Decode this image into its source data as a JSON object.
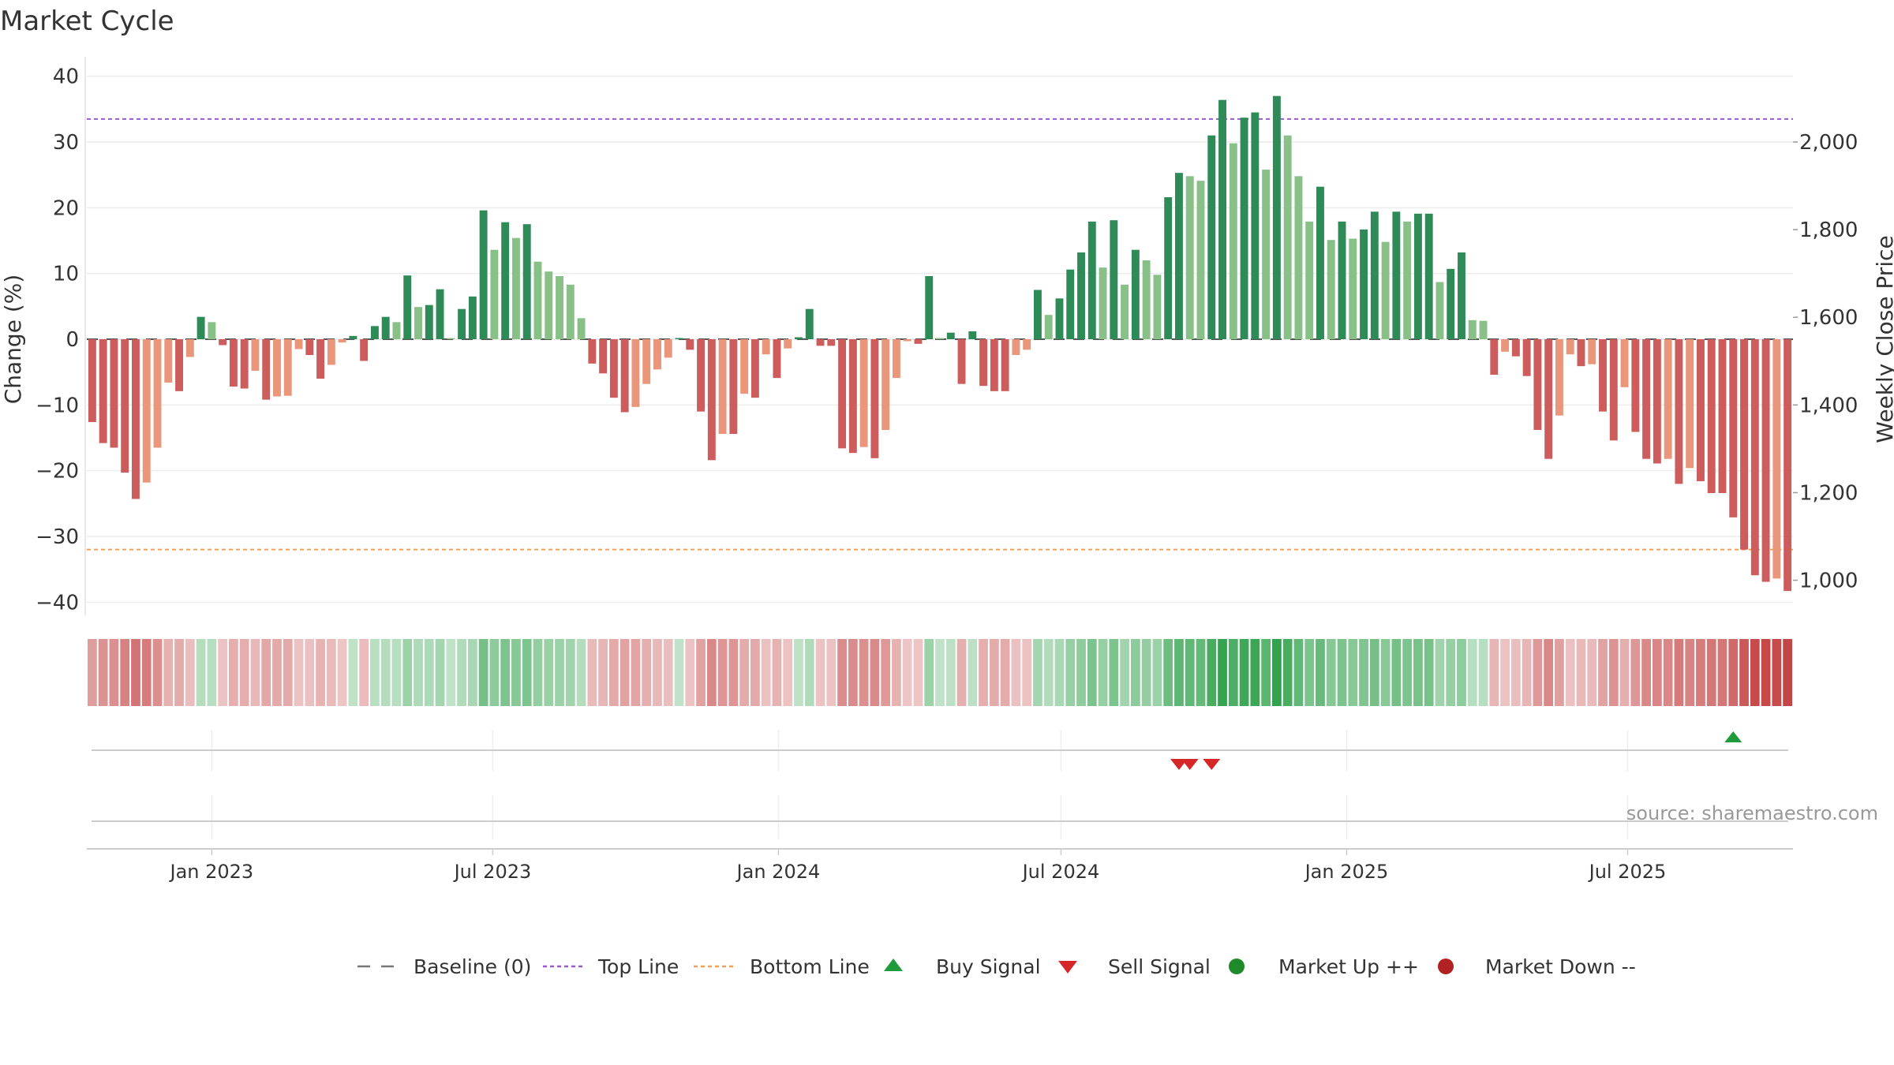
{
  "chart_data": {
    "type": "bar",
    "title": "Market Cycle",
    "ylabel": "Change (%)",
    "y2label": "Weekly Close Price",
    "ylim": [
      -42,
      42
    ],
    "yticks": [
      40,
      30,
      20,
      10,
      0,
      -10,
      -20,
      -30,
      -40
    ],
    "ytick_labels": [
      "40",
      "30",
      "20",
      "10",
      "0",
      "−10",
      "−20",
      "−30",
      "−40"
    ],
    "y2lim": [
      920,
      2180
    ],
    "y2ticks": [
      2000,
      1800,
      1600,
      1400,
      1200,
      1000
    ],
    "y2tick_labels": [
      "2,000",
      "1,800",
      "1,600",
      "1,400",
      "1,200",
      "1,000"
    ],
    "week_start": "2022-10-16",
    "xticks": [
      {
        "label": "Jan 2023",
        "date": "2023-01-01"
      },
      {
        "label": "Jul 2023",
        "date": "2023-07-01"
      },
      {
        "label": "Jan 2024",
        "date": "2024-01-01"
      },
      {
        "label": "Jul 2024",
        "date": "2024-07-01"
      },
      {
        "label": "Jan 2025",
        "date": "2025-01-01"
      },
      {
        "label": "Jul 2025",
        "date": "2025-07-01"
      }
    ],
    "values": [
      -12.6,
      -15.8,
      -16.5,
      -20.3,
      -24.3,
      -21.8,
      -16.5,
      -6.6,
      -7.9,
      -2.7,
      3.4,
      2.6,
      -0.9,
      -7.2,
      -7.5,
      -4.8,
      -9.2,
      -8.7,
      -8.6,
      -1.5,
      -2.4,
      -6.0,
      -3.9,
      -0.5,
      0.5,
      -3.3,
      2.0,
      3.4,
      2.6,
      9.7,
      4.9,
      5.2,
      7.6,
      0,
      4.6,
      6.5,
      19.6,
      13.6,
      17.8,
      15.4,
      17.5,
      11.8,
      10.3,
      9.6,
      8.3,
      3.2,
      -3.7,
      -5.2,
      -8.9,
      -11.1,
      -10.3,
      -6.8,
      -4.6,
      -2.8,
      0,
      -1.6,
      -11.0,
      -18.4,
      -14.4,
      -14.4,
      -8.3,
      -8.9,
      -2.3,
      -5.9,
      -1.4,
      0.3,
      4.6,
      -1.0,
      -1.0,
      -16.6,
      -17.3,
      -16.4,
      -18.1,
      -13.8,
      -5.9,
      -0.3,
      -0.7,
      9.6,
      0,
      1.0,
      -6.8,
      1.2,
      -7.1,
      -7.9,
      -7.9,
      -2.4,
      -1.6,
      7.5,
      3.7,
      6.2,
      10.6,
      13.2,
      17.9,
      10.9,
      18.1,
      8.3,
      13.6,
      12.0,
      9.8,
      21.6,
      25.3,
      24.8,
      24.1,
      31.0,
      36.4,
      29.8,
      33.7,
      34.5,
      25.8,
      37.0,
      31.0,
      24.8,
      17.9,
      23.2,
      15.1,
      17.9,
      15.3,
      16.7,
      19.4,
      14.8,
      19.4,
      17.9,
      19.1,
      19.1,
      8.7,
      10.7,
      13.2,
      2.9,
      2.8,
      -5.4,
      -1.9,
      -2.6,
      -5.6,
      -13.8,
      -18.2,
      -11.6,
      -2.3,
      -4.1,
      -3.8,
      -11.0,
      -15.4,
      -7.3,
      -14.1,
      -18.2,
      -18.9,
      -18.2,
      -22.0,
      -19.6,
      -21.6,
      -23.4,
      -23.4,
      -27.1,
      -32.0,
      -35.9,
      -36.9,
      -36.4,
      -38.3
    ],
    "baseline": 0,
    "top_line": 33.5,
    "bottom_line": -32.0,
    "buy_signals": [
      "2025-09-07"
    ],
    "sell_signals": [
      "2024-09-15",
      "2024-09-22",
      "2024-10-06"
    ],
    "annotation": "source: sharemaestro.com",
    "legend_position": "bottom-center",
    "legend": [
      {
        "label": "Baseline (0)",
        "symbol": "dash",
        "color": "#777777"
      },
      {
        "label": "Top Line",
        "symbol": "dot",
        "color": "#9b59d0"
      },
      {
        "label": "Bottom Line",
        "symbol": "dot",
        "color": "#f0a050"
      },
      {
        "label": "Buy Signal",
        "symbol": "triangle-up",
        "color": "#1e9a3a"
      },
      {
        "label": "Sell Signal",
        "symbol": "triangle-down",
        "color": "#d62728"
      },
      {
        "label": "Market Up ++",
        "symbol": "circle",
        "color": "#1e8a2a"
      },
      {
        "label": "Market Down --",
        "symbol": "circle",
        "color": "#b22222"
      }
    ],
    "colors": {
      "pos_strong": "#2e8b57",
      "pos_light": "#88c088",
      "neg_strong": "#cd5c5c",
      "neg_light": "#e9967a",
      "top_line": "#9b59d0",
      "bottom_line": "#f0a050"
    }
  }
}
